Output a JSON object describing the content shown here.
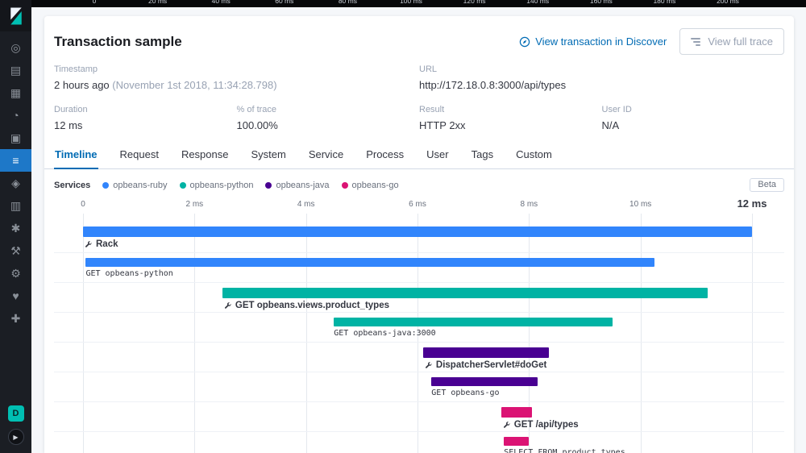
{
  "sidebar": {
    "items": [
      {
        "name": "discover",
        "glyph": "◎"
      },
      {
        "name": "visualize",
        "glyph": "▤"
      },
      {
        "name": "dashboard",
        "glyph": "▦"
      },
      {
        "name": "timelion",
        "glyph": "◔"
      },
      {
        "name": "canvas",
        "glyph": "▣"
      },
      {
        "name": "apm",
        "glyph": "≡",
        "active": true
      },
      {
        "name": "infrastructure",
        "glyph": "◈"
      },
      {
        "name": "logs",
        "glyph": "▥"
      },
      {
        "name": "machine-learning",
        "glyph": "✱"
      },
      {
        "name": "graph",
        "glyph": "⚒"
      },
      {
        "name": "dev-tools",
        "glyph": "⚙"
      },
      {
        "name": "uptime",
        "glyph": "♥"
      },
      {
        "name": "management",
        "glyph": "✚"
      }
    ],
    "space_badge": "D",
    "collapse_glyph": "▶"
  },
  "minimap": {
    "ticks": [
      "0",
      "20 ms",
      "40 ms",
      "60 ms",
      "80 ms",
      "100 ms",
      "120 ms",
      "140 ms",
      "160 ms",
      "180 ms",
      "200 ms"
    ]
  },
  "header": {
    "title": "Transaction sample",
    "discover_link": "View transaction in Discover",
    "full_trace_button": "View full trace"
  },
  "details": {
    "row1": [
      {
        "label": "Timestamp",
        "value": "2 hours ago",
        "note": " (November 1st 2018, 11:34:28.798)"
      },
      {
        "label": "URL",
        "value": "http://172.18.0.8:3000/api/types"
      }
    ],
    "row2": [
      {
        "label": "Duration",
        "value": "12 ms"
      },
      {
        "label": "% of trace",
        "value": "100.00%"
      },
      {
        "label": "Result",
        "value": "HTTP 2xx"
      },
      {
        "label": "User ID",
        "value": "N/A"
      }
    ]
  },
  "tabs": {
    "items": [
      "Timeline",
      "Request",
      "Response",
      "System",
      "Service",
      "Process",
      "User",
      "Tags",
      "Custom"
    ],
    "active": "Timeline"
  },
  "legend": {
    "label": "Services",
    "items": [
      {
        "name": "opbeans-ruby",
        "color": "#3185fc"
      },
      {
        "name": "opbeans-python",
        "color": "#00b3a4"
      },
      {
        "name": "opbeans-java",
        "color": "#490092"
      },
      {
        "name": "opbeans-go",
        "color": "#db1374"
      }
    ],
    "beta": "Beta"
  },
  "chart_data": {
    "type": "bar",
    "subtype": "trace-waterfall",
    "unit": "ms",
    "xlim": [
      0,
      12
    ],
    "axis_ticks": [
      {
        "label": "0",
        "ms": 0
      },
      {
        "label": "2 ms",
        "ms": 2
      },
      {
        "label": "4 ms",
        "ms": 4
      },
      {
        "label": "6 ms",
        "ms": 6
      },
      {
        "label": "8 ms",
        "ms": 8
      },
      {
        "label": "10 ms",
        "ms": 10
      },
      {
        "label": "12 ms",
        "ms": 12,
        "emphasis": true
      }
    ],
    "services": {
      "opbeans-ruby": "#3185fc",
      "opbeans-python": "#00b3a4",
      "opbeans-java": "#490092",
      "opbeans-go": "#db1374"
    },
    "spans": [
      {
        "name": "Rack",
        "service": "opbeans-ruby",
        "start_ms": 0,
        "end_ms": 12.0,
        "kind": "transaction"
      },
      {
        "name": "GET opbeans-python",
        "service": "opbeans-ruby",
        "start_ms": 0.05,
        "end_ms": 10.25,
        "kind": "span"
      },
      {
        "name": "GET opbeans.views.product_types",
        "service": "opbeans-python",
        "start_ms": 2.5,
        "end_ms": 11.2,
        "kind": "transaction"
      },
      {
        "name": "GET opbeans-java:3000",
        "service": "opbeans-python",
        "start_ms": 4.5,
        "end_ms": 9.5,
        "kind": "span"
      },
      {
        "name": "DispatcherServlet#doGet",
        "service": "opbeans-java",
        "start_ms": 6.1,
        "end_ms": 8.35,
        "kind": "transaction"
      },
      {
        "name": "GET opbeans-go",
        "service": "opbeans-java",
        "start_ms": 6.25,
        "end_ms": 8.15,
        "kind": "span"
      },
      {
        "name": "GET /api/types",
        "service": "opbeans-go",
        "start_ms": 7.5,
        "end_ms": 8.05,
        "kind": "transaction"
      },
      {
        "name": "SELECT FROM product_types",
        "service": "opbeans-go",
        "start_ms": 7.55,
        "end_ms": 8.0,
        "kind": "span"
      }
    ]
  }
}
